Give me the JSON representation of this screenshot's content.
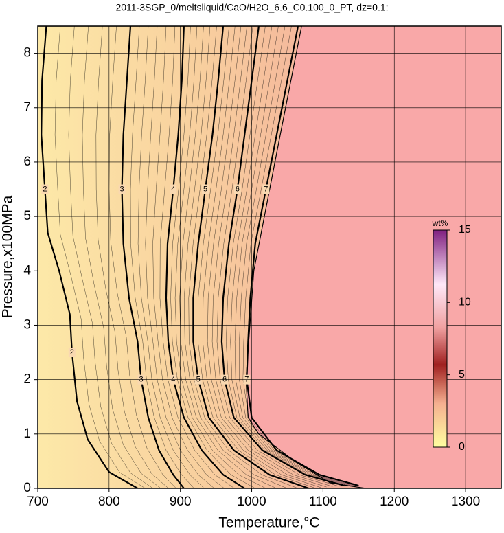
{
  "chart_data": {
    "type": "contour",
    "title": "2011-3SGP_0/meltsliquid/CaO/H2O_6.6_C0.100_0_PT, dz=0.1:",
    "x_label": "Temperature,°C",
    "y_label": "Pressure,x100MPa",
    "xlim": [
      700,
      1350
    ],
    "ylim": [
      0,
      8.5
    ],
    "xticks": [
      700,
      800,
      900,
      1000,
      1100,
      1200,
      1300
    ],
    "yticks": [
      0,
      1,
      2,
      3,
      4,
      5,
      6,
      7,
      8
    ],
    "grid": true,
    "colorbar": {
      "label": "wt%",
      "lim": [
        0,
        15
      ],
      "ticks": [
        0,
        5,
        10,
        15
      ]
    },
    "boundary": {
      "x": [
        1070,
        1040,
        1003,
        992,
        995,
        1010,
        1060,
        1110,
        1160
      ],
      "y": [
        8.5,
        6.5,
        4,
        2,
        1.3,
        1,
        0.5,
        0.1,
        0
      ]
    },
    "contours": [
      {
        "level": 2,
        "x": [
          712,
          706,
          705,
          710,
          714,
          730,
          745,
          748,
          755,
          770,
          800,
          840
        ],
        "y": [
          8.5,
          7.5,
          6.5,
          5.5,
          4.7,
          4,
          3.2,
          2.5,
          1.6,
          0.9,
          0.3,
          0
        ]
      },
      {
        "level": 3,
        "x": [
          830,
          825,
          820,
          818,
          820,
          828,
          840,
          845,
          855,
          870,
          890,
          905
        ],
        "y": [
          8.5,
          7.5,
          6.5,
          5.5,
          4.5,
          3.5,
          2.7,
          2,
          1.3,
          0.7,
          0.25,
          0
        ]
      },
      {
        "level": 4,
        "x": [
          905,
          902,
          897,
          890,
          882,
          880,
          883,
          890,
          905,
          930,
          960,
          990
        ],
        "y": [
          8.5,
          7.5,
          6.5,
          5.5,
          4.5,
          3.5,
          2.7,
          2,
          1.3,
          0.7,
          0.25,
          0
        ]
      },
      {
        "level": 5,
        "x": [
          960,
          953,
          945,
          935,
          925,
          918,
          918,
          925,
          940,
          975,
          1025,
          1080
        ],
        "y": [
          8.5,
          7.5,
          6.5,
          5.5,
          4.5,
          3.5,
          2.7,
          2,
          1.3,
          0.7,
          0.25,
          0
        ]
      },
      {
        "level": 6,
        "x": [
          1010,
          1000,
          990,
          980,
          968,
          960,
          958,
          962,
          975,
          1015,
          1075,
          1130
        ],
        "y": [
          8.5,
          7.5,
          6.5,
          5.5,
          4.5,
          3.5,
          2.7,
          2,
          1.3,
          0.7,
          0.25,
          0.05
        ]
      },
      {
        "level": 7,
        "x": [
          1065,
          1050,
          1035,
          1020,
          1005,
          998,
          995,
          993,
          1000,
          1035,
          1095,
          1150
        ],
        "y": [
          8.5,
          7.5,
          6.5,
          5.5,
          4.5,
          3.5,
          2.7,
          2,
          1.3,
          0.7,
          0.25,
          0.05
        ]
      }
    ]
  }
}
